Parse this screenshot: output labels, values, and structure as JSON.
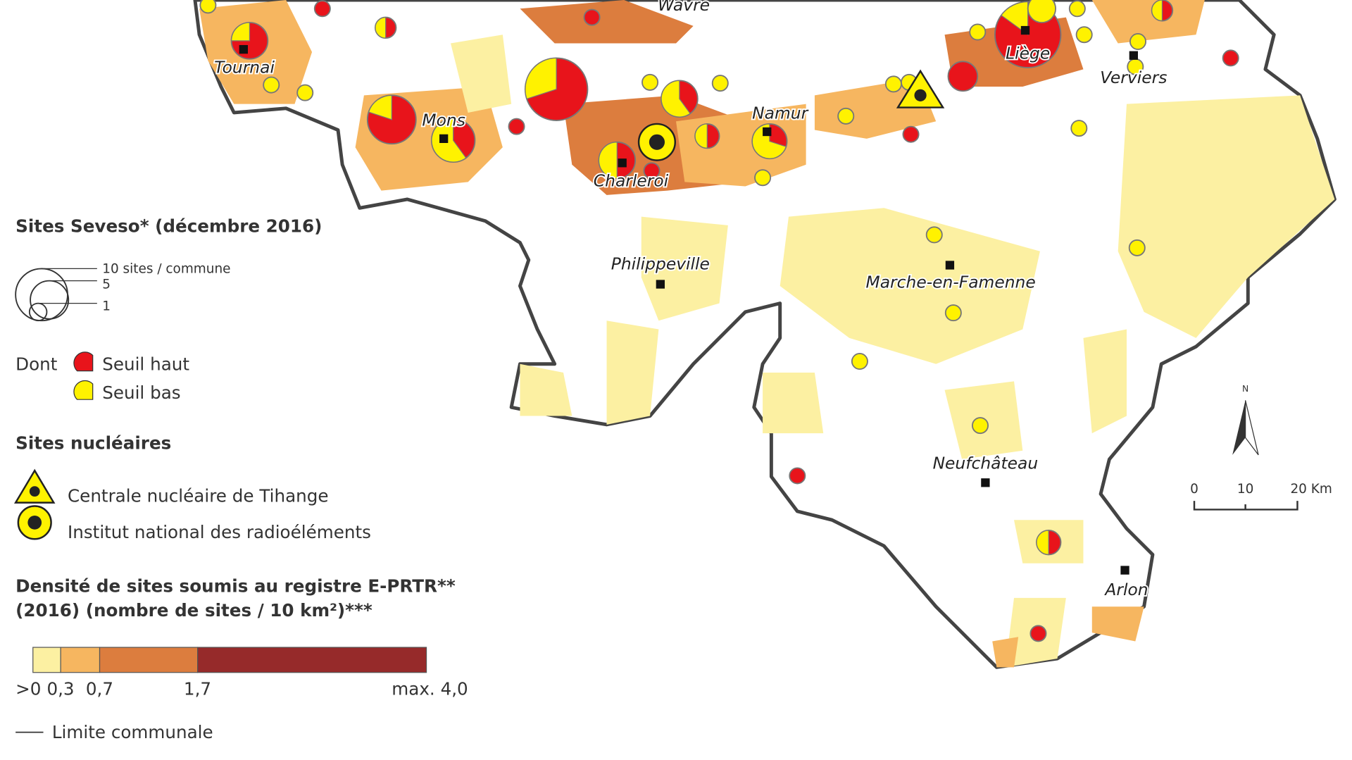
{
  "cities": [
    "Wavre",
    "Tournai",
    "Liège",
    "Verviers",
    "Mons",
    "Namur",
    "Charleroi",
    "Philippeville",
    "Marche-en-Famenne",
    "Neufchâteau",
    "Arlon"
  ],
  "legend": {
    "seveso": {
      "title": "Sites Seveso* (décembre 2016)",
      "sizes": [
        "10 sites / commune",
        "5",
        "1"
      ],
      "dont": "Dont",
      "high": "Seuil haut",
      "low": "Seuil bas"
    },
    "nuclear": {
      "title": "Sites nucléaires",
      "items": [
        "Centrale nucléaire de Tihange",
        "Institut national des radioéléments"
      ]
    },
    "density": {
      "title_lines": [
        "Densité de sites soumis au registre E-PRTR**",
        "(2016) (nombre de sites / 10 km²)***"
      ],
      "labels": [
        ">0",
        "0,3",
        "0,7",
        "1,7",
        "max. 4,0"
      ]
    },
    "boundary": "Limite communale"
  },
  "scale": {
    "north": "N",
    "labels": [
      "0",
      "10",
      "20 Km"
    ]
  }
}
